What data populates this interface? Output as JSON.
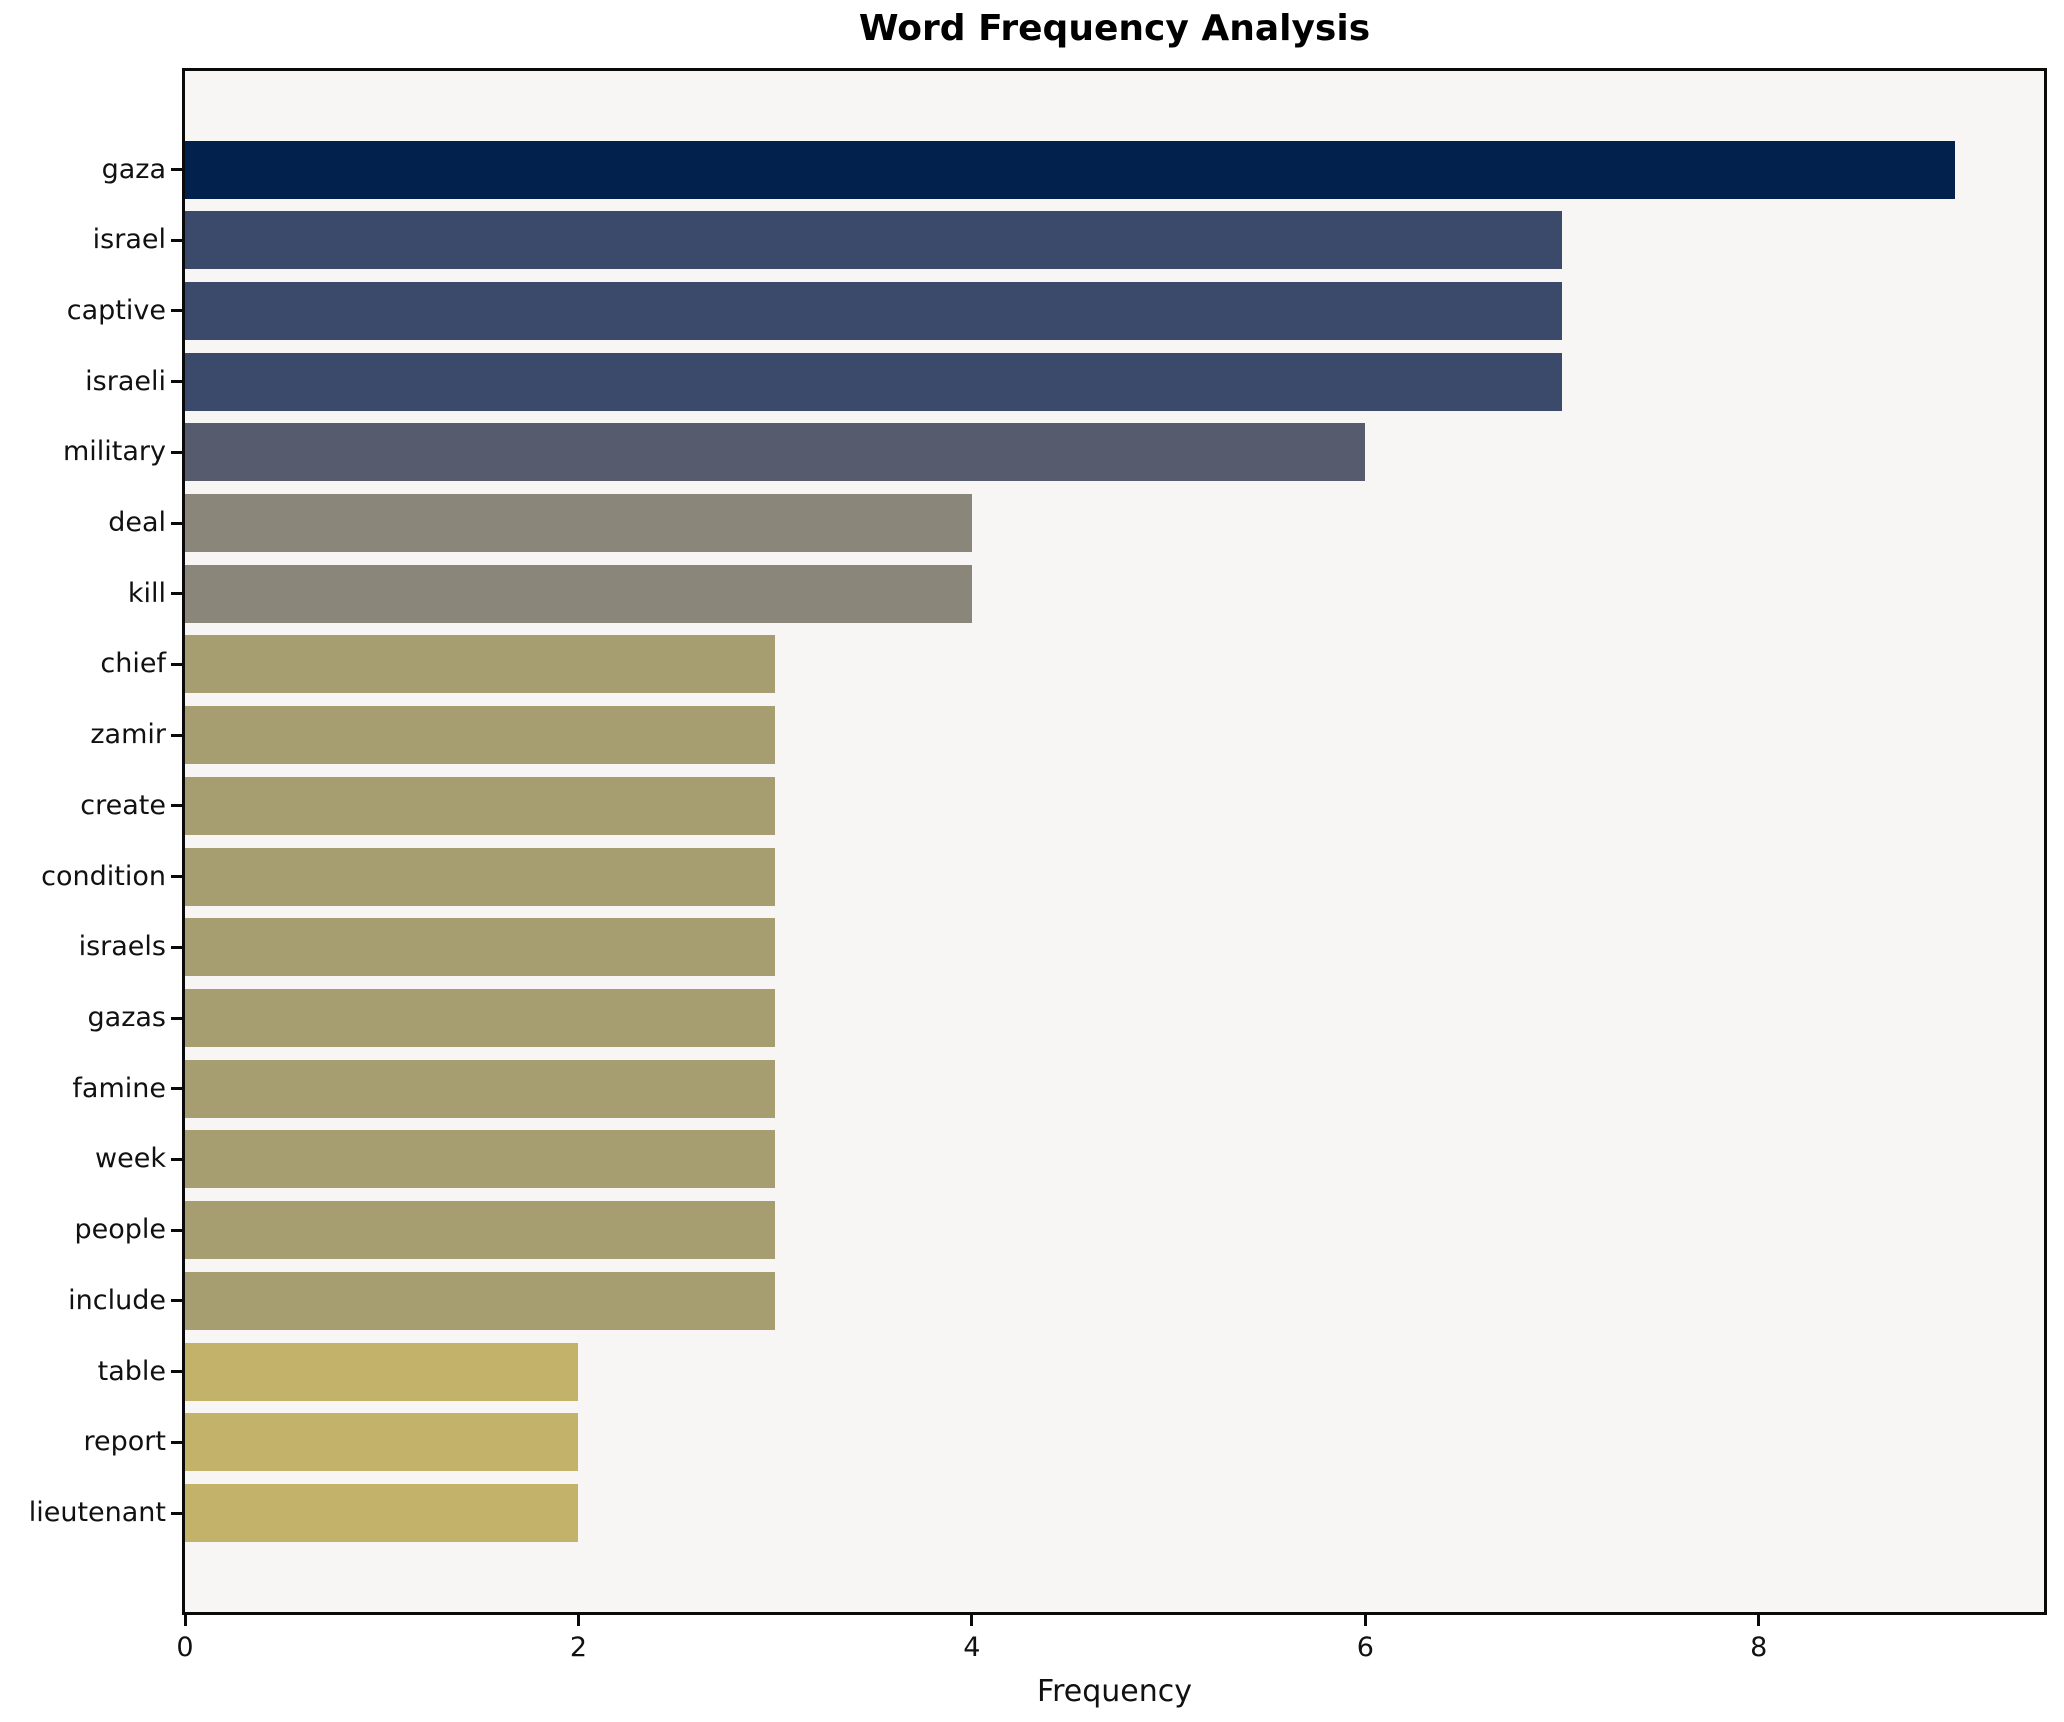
{
  "chart_data": {
    "type": "bar",
    "orientation": "horizontal",
    "title": "Word Frequency Analysis",
    "xlabel": "Frequency",
    "ylabel": "",
    "categories": [
      "gaza",
      "israel",
      "captive",
      "israeli",
      "military",
      "deal",
      "kill",
      "chief",
      "zamir",
      "create",
      "condition",
      "israels",
      "gazas",
      "famine",
      "week",
      "people",
      "include",
      "table",
      "report",
      "lieutenant"
    ],
    "values": [
      9,
      7,
      7,
      7,
      6,
      4,
      4,
      3,
      3,
      3,
      3,
      3,
      3,
      3,
      3,
      3,
      3,
      2,
      2,
      2
    ],
    "bar_colors": [
      "#02214d",
      "#3b4a6b",
      "#3b4a6b",
      "#3b4a6b",
      "#565c6d",
      "#8a8679",
      "#8a8679",
      "#a69d71",
      "#a69d71",
      "#a69d71",
      "#a69d71",
      "#a69d71",
      "#a69d71",
      "#a69d71",
      "#a69d71",
      "#a69d71",
      "#a69d71",
      "#c3b269",
      "#c3b269",
      "#c3b269"
    ],
    "xlim": [
      0,
      9.45
    ],
    "x_ticks": [
      0,
      2,
      4,
      6,
      8
    ],
    "grid": false,
    "legend_position": "none",
    "colormap": "cividis-reversed-by-value",
    "plot_background": "#f7f6f5",
    "frame_color": "#0a0a0a",
    "text_color": "#111111"
  }
}
